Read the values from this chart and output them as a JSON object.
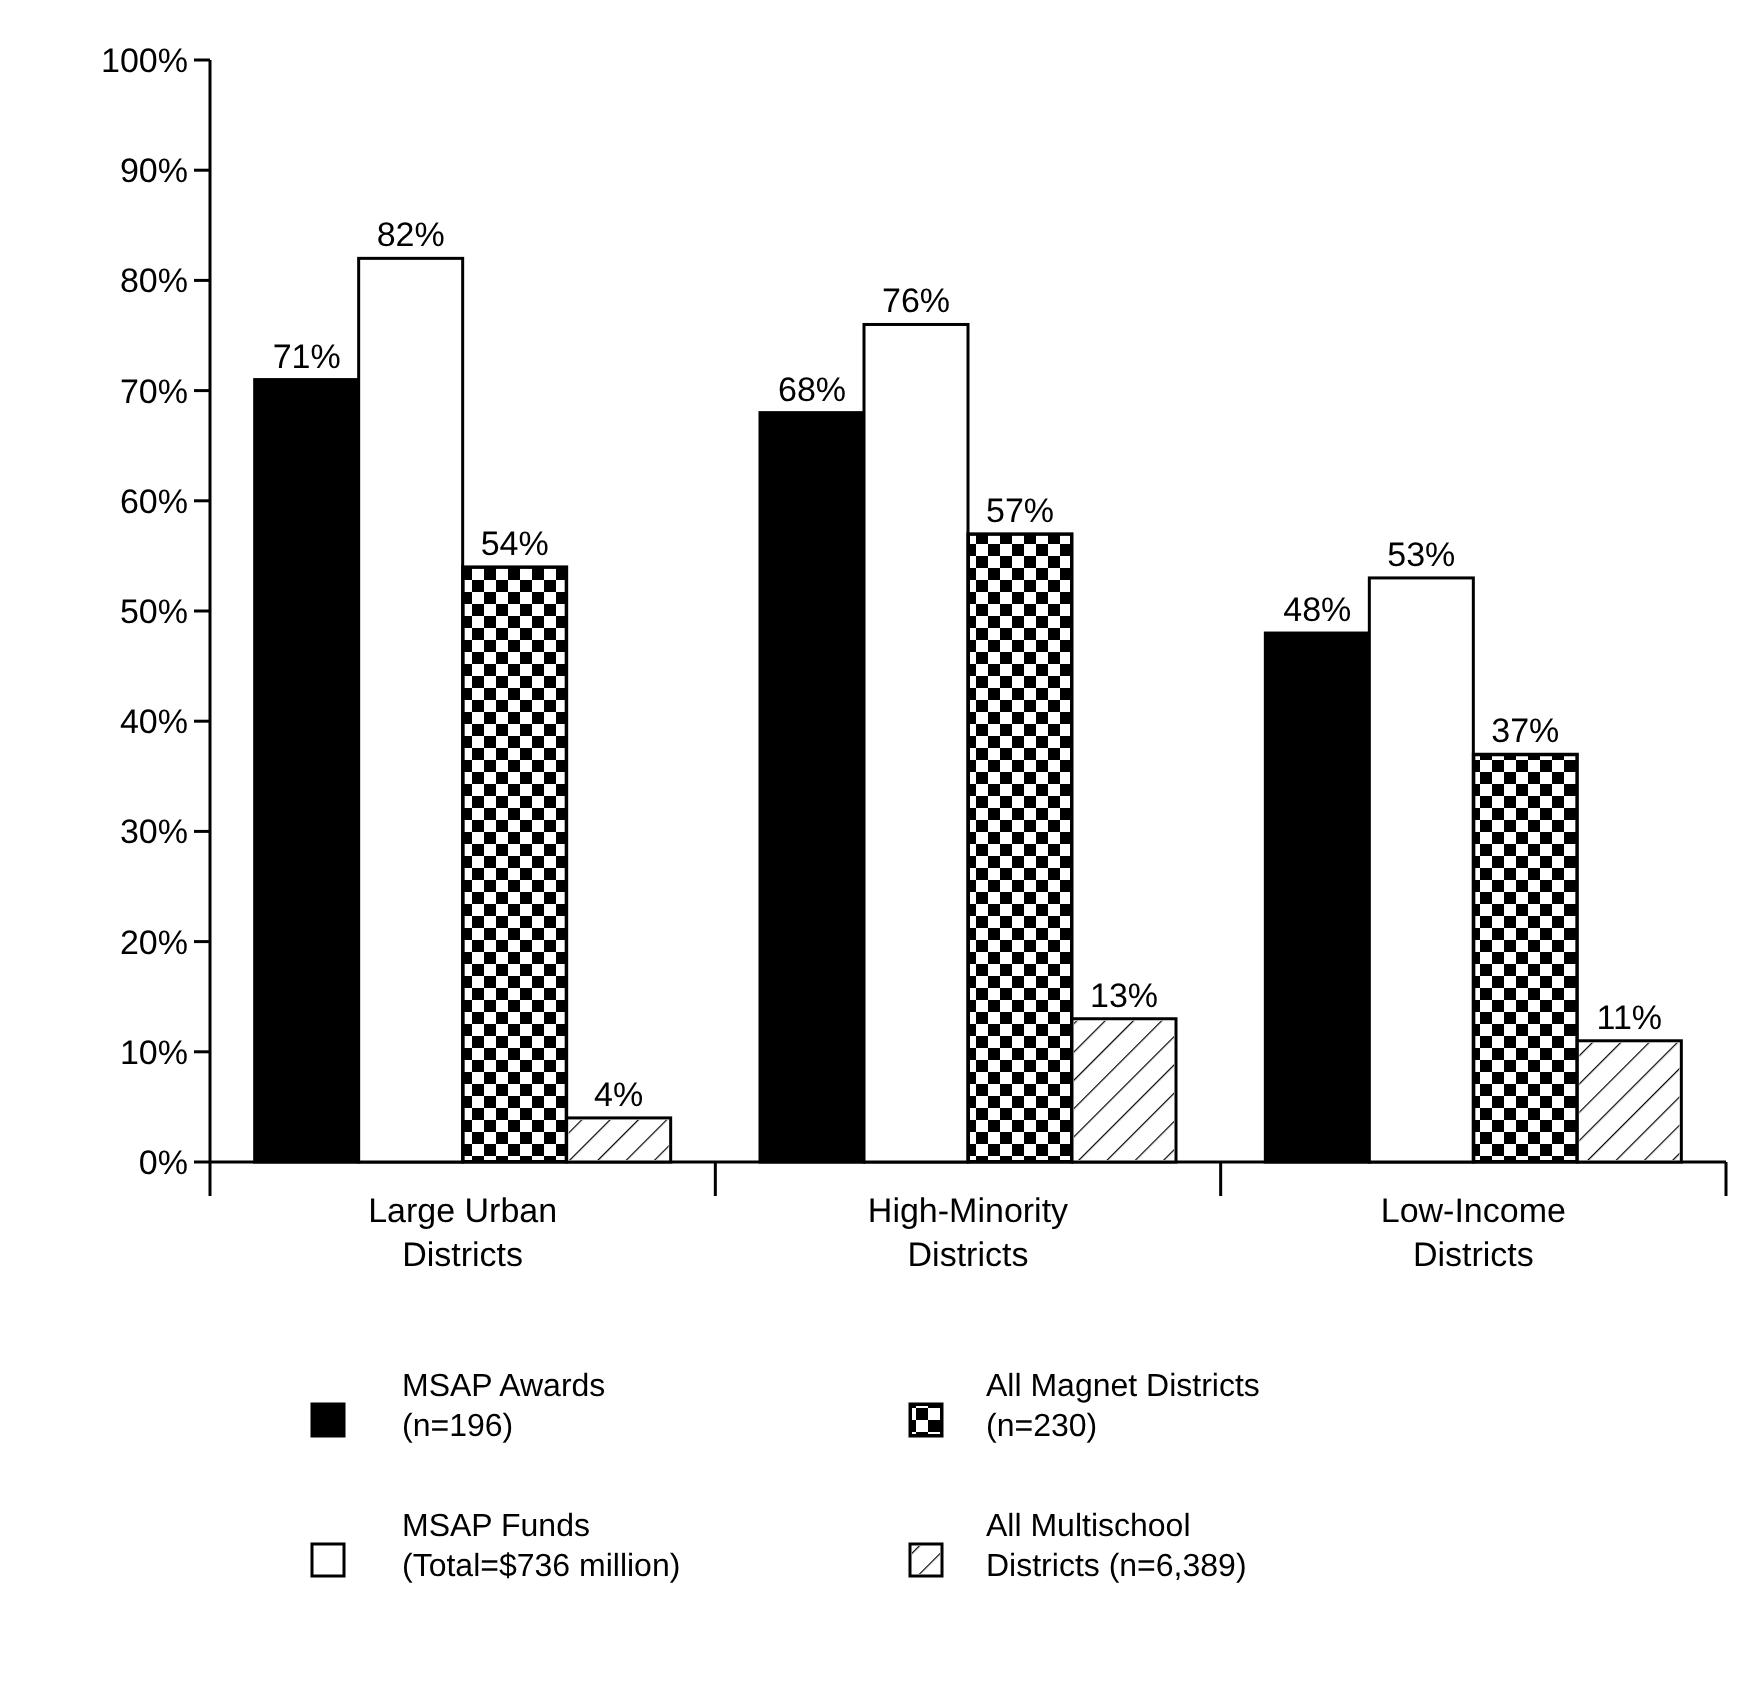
{
  "chart_data": {
    "type": "bar",
    "categories": [
      "Large Urban\nDistricts",
      "High-Minority\nDistricts",
      "Low-Income\nDistricts"
    ],
    "series": [
      {
        "name": "MSAP Awards\n(n=196)",
        "color": "#000000",
        "values": [
          71,
          68,
          48
        ],
        "value_labels": [
          "71%",
          "68%",
          "48%"
        ]
      },
      {
        "name": "MSAP Funds\n(Total=$736 million)",
        "color": "#ffffff",
        "values": [
          82,
          76,
          53
        ],
        "value_labels": [
          "82%",
          "76%",
          "53%"
        ]
      },
      {
        "name": "All Magnet Districts\n(n=230)",
        "color": "#000000",
        "values": [
          54,
          57,
          37
        ],
        "value_labels": [
          "54%",
          "57%",
          "37%"
        ]
      },
      {
        "name": "All Multischool\nDistricts (n=6,389)",
        "color": "#ffffff",
        "values": [
          4,
          13,
          11
        ],
        "value_labels": [
          "4%",
          "13%",
          "11%"
        ]
      }
    ],
    "ylim": [
      0,
      100
    ],
    "yticks": [
      {
        "value": 0,
        "label": "0%"
      },
      {
        "value": 10,
        "label": "10%"
      },
      {
        "value": 20,
        "label": "20%"
      },
      {
        "value": 30,
        "label": "30%"
      },
      {
        "value": 40,
        "label": "40%"
      },
      {
        "value": 50,
        "label": "50%"
      },
      {
        "value": 60,
        "label": "60%"
      },
      {
        "value": 70,
        "label": "70%"
      },
      {
        "value": 80,
        "label": "80%"
      },
      {
        "value": 90,
        "label": "90%"
      },
      {
        "value": 100,
        "label": "100%"
      }
    ],
    "grid": false,
    "legend": "bottom"
  }
}
